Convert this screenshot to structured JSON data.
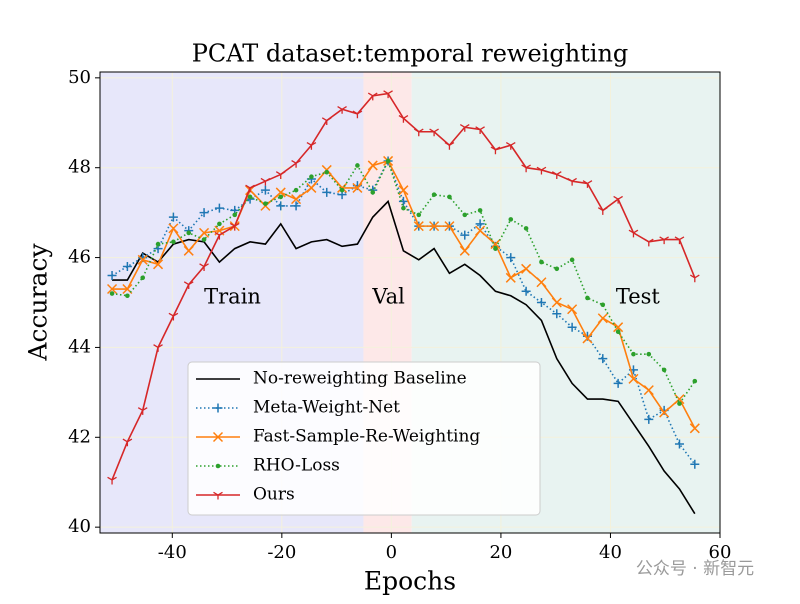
{
  "chart_data": {
    "type": "line",
    "title": "PCAT dataset:temporal reweighting",
    "xlabel": "Epochs",
    "ylabel": "Accuracy",
    "xlim": [
      -53.2,
      60
    ],
    "ylim": [
      39.87,
      50.13
    ],
    "xticks": [
      -40,
      -20,
      0,
      20,
      40,
      60
    ],
    "yticks": [
      40,
      42,
      44,
      46,
      48,
      50
    ],
    "grid": true,
    "legend": "lower center",
    "regions": [
      {
        "label": "Train",
        "start": -53.2,
        "end": -5.1,
        "color": "#e7e7fa",
        "label_x": -29,
        "label_y": 45.1
      },
      {
        "label": "Val",
        "start": -5.1,
        "end": 3.7,
        "color": "#fde8e8",
        "label_x": -0.5,
        "label_y": 45.1
      },
      {
        "label": "Test",
        "start": 3.7,
        "end": 60,
        "color": "#e8f3f1",
        "label_x": 45,
        "label_y": 45.1
      }
    ],
    "x": [
      -51,
      -48.2,
      -45.4,
      -42.6,
      -39.8,
      -37,
      -34.2,
      -31.4,
      -28.6,
      -25.8,
      -23,
      -20.2,
      -17.4,
      -14.6,
      -11.8,
      -9,
      -6.2,
      -3.4,
      -0.6,
      2.2,
      5,
      7.8,
      10.6,
      13.4,
      16.2,
      19,
      21.8,
      24.6,
      27.4,
      30.2,
      33,
      35.8,
      38.6,
      41.4,
      44.2,
      47,
      49.8,
      52.6,
      55.4
    ],
    "series": [
      {
        "name": "No-reweighting Baseline",
        "color": "#000000",
        "style": "solid",
        "marker": "none",
        "values": [
          45.5,
          45.5,
          46.1,
          45.9,
          46.3,
          46.4,
          46.35,
          45.9,
          46.2,
          46.35,
          46.3,
          46.75,
          46.2,
          46.35,
          46.4,
          46.25,
          46.3,
          46.9,
          47.25,
          46.15,
          45.95,
          46.2,
          45.65,
          45.85,
          45.6,
          45.25,
          45.15,
          44.95,
          44.6,
          43.75,
          43.2,
          42.85,
          42.85,
          42.8,
          42.3,
          41.8,
          41.25,
          40.85,
          40.3
        ]
      },
      {
        "name": "Meta-Weight-Net",
        "color": "#1f77b4",
        "style": "dotted",
        "marker": "plus",
        "values": [
          45.6,
          45.8,
          46.0,
          46.2,
          46.9,
          46.6,
          47.0,
          47.1,
          47.05,
          47.3,
          47.5,
          47.15,
          47.15,
          47.75,
          47.45,
          47.4,
          47.6,
          47.5,
          48.15,
          47.25,
          46.7,
          46.7,
          46.7,
          46.5,
          46.75,
          46.25,
          46.0,
          45.25,
          45.0,
          44.75,
          44.45,
          44.25,
          43.75,
          43.2,
          43.5,
          42.4,
          42.6,
          41.85,
          41.4
        ]
      },
      {
        "name": "Fast-Sample-Re-Weighting",
        "color": "#ff7f0e",
        "style": "solid",
        "marker": "x",
        "values": [
          45.3,
          45.3,
          45.95,
          45.85,
          46.65,
          46.15,
          46.55,
          46.6,
          46.7,
          47.5,
          47.15,
          47.45,
          47.3,
          47.55,
          47.95,
          47.55,
          47.55,
          48.05,
          48.15,
          47.5,
          46.7,
          46.7,
          46.7,
          46.15,
          46.6,
          46.3,
          45.55,
          45.75,
          45.45,
          45.0,
          44.85,
          44.2,
          44.65,
          44.45,
          43.3,
          43.05,
          42.55,
          42.85,
          42.2
        ]
      },
      {
        "name": "RHO-Loss",
        "color": "#2ca02c",
        "style": "dotted",
        "marker": "dot",
        "values": [
          45.2,
          45.15,
          45.55,
          46.3,
          46.35,
          46.55,
          46.4,
          46.75,
          46.95,
          47.35,
          47.2,
          47.35,
          47.5,
          47.8,
          47.9,
          47.5,
          48.05,
          47.45,
          48.15,
          47.1,
          46.95,
          47.4,
          47.35,
          46.95,
          47.05,
          46.2,
          46.85,
          46.65,
          45.9,
          45.75,
          45.95,
          45.1,
          44.95,
          44.35,
          43.85,
          43.85,
          43.5,
          42.75,
          43.25
        ]
      },
      {
        "name": "Ours",
        "color": "#d62728",
        "style": "solid",
        "marker": "tri",
        "values": [
          41.05,
          41.9,
          42.6,
          44.0,
          44.7,
          45.4,
          45.8,
          46.5,
          46.7,
          47.55,
          47.7,
          47.85,
          48.1,
          48.5,
          49.05,
          49.3,
          49.2,
          49.6,
          49.65,
          49.1,
          48.8,
          48.8,
          48.5,
          48.9,
          48.85,
          48.4,
          48.5,
          48.0,
          47.95,
          47.85,
          47.7,
          47.65,
          47.05,
          47.3,
          46.55,
          46.35,
          46.4,
          46.4,
          45.55
        ]
      }
    ],
    "watermark": "公众号 · 新智元"
  }
}
